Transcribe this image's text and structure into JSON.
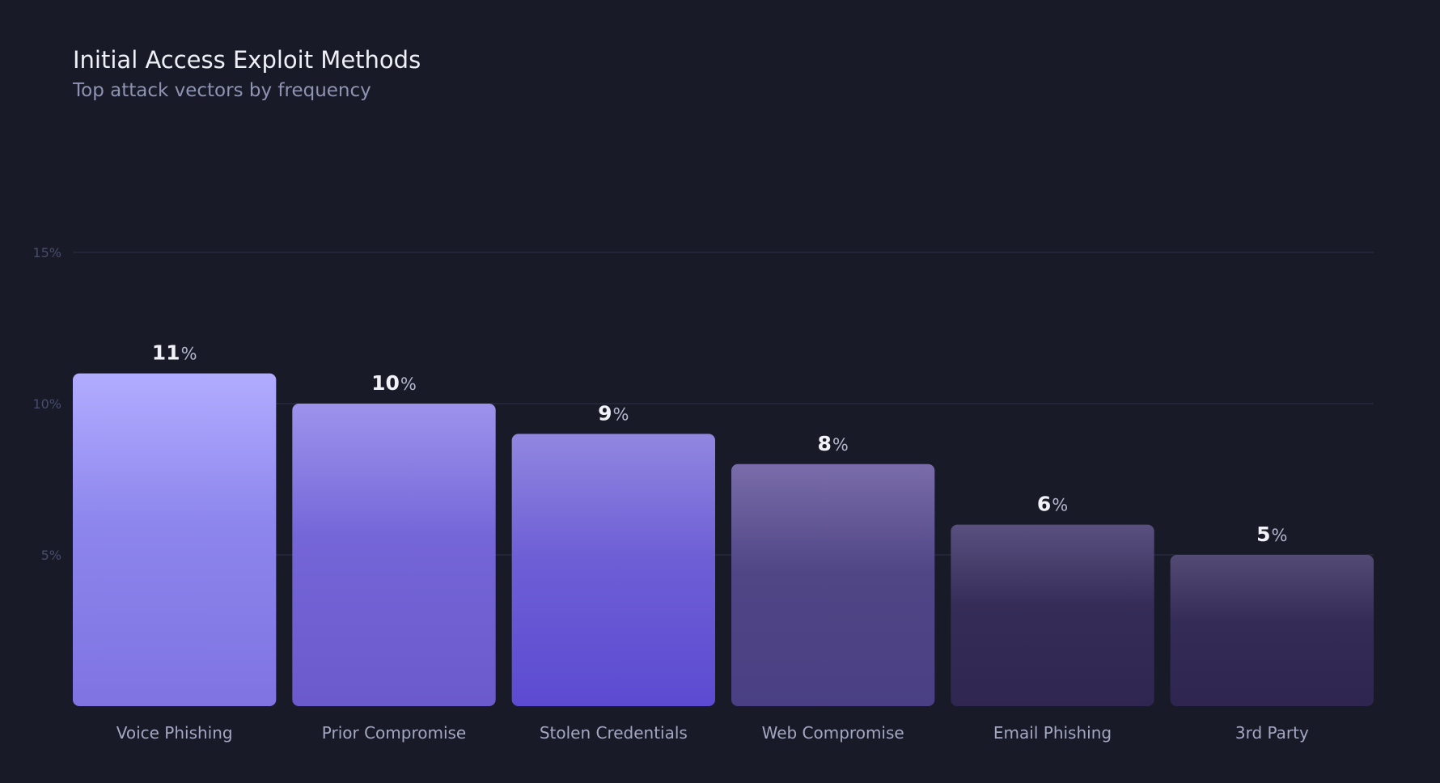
{
  "chart_data": {
    "type": "bar",
    "title": "Initial Access Exploit Methods",
    "subtitle": "Top attack vectors by frequency",
    "categories": [
      "Voice Phishing",
      "Prior Compromise",
      "Stolen Credentials",
      "Web Compromise",
      "Email Phishing",
      "3rd Party"
    ],
    "values": [
      11,
      10,
      9,
      8,
      6,
      5
    ],
    "unit": "%",
    "ylim": [
      0,
      15
    ],
    "yticks": [
      5,
      10,
      15
    ],
    "ytick_labels": [
      "5%",
      "10%",
      "15%"
    ],
    "grid": true,
    "legend": "none",
    "colors": [
      [
        "#b2acff",
        "#8d86ed",
        "#7f73e2"
      ],
      [
        "#9d93ec",
        "#7465d8",
        "#6b5acb"
      ],
      [
        "#9187e0",
        "#6e5fd6",
        "#5c4bd1"
      ],
      [
        "#7a6cab",
        "#504685",
        "#4a3f84"
      ],
      [
        "#5a5080",
        "#352c58",
        "#2f2751"
      ],
      [
        "#534b74",
        "#342c57",
        "#2e2650"
      ]
    ]
  }
}
